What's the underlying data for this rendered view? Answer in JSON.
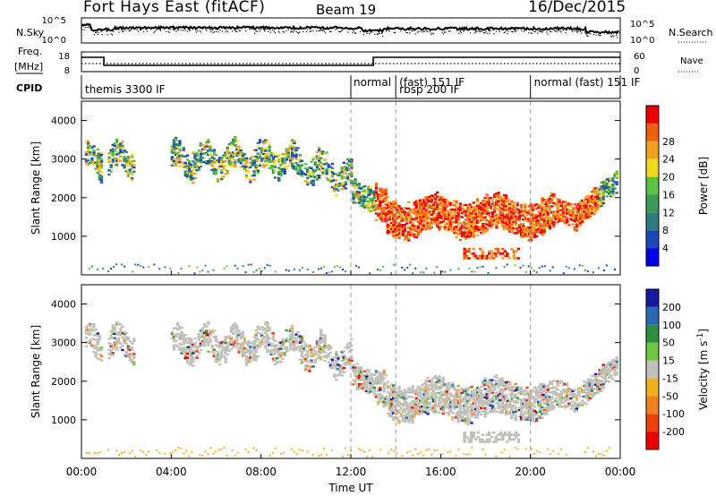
{
  "header": {
    "radar": "Fort Hays East (fitACF)",
    "beam": "Beam 19",
    "date": "16/Dec/2015"
  },
  "left_labels": {
    "nsky": "N.Sky",
    "freq_top": "Freq.",
    "freq_unit": "[MHz]",
    "cpid": "CPID"
  },
  "right_labels": {
    "nsearch": "N.Search",
    "nave": "Nave"
  },
  "noise_axis": {
    "left_top": "10^5",
    "left_bottom": "10^0",
    "right_top": "10^5",
    "right_bottom": "10^0"
  },
  "freq_axis": {
    "left_top": "18",
    "left_bottom": "8",
    "right_top": "60",
    "right_bottom": "0"
  },
  "cpid_labels": [
    "themis 3300 IF",
    "normal",
    "(fast) 151 IF",
    "rbsp 200 IF",
    "normal (fast) 151 IF"
  ],
  "xaxis": {
    "label": "Time UT",
    "ticks": [
      "00:00",
      "04:00",
      "08:00",
      "12:00",
      "16:00",
      "20:00",
      "00:00"
    ]
  },
  "chart_data": [
    {
      "type": "heatmap",
      "title": "",
      "xlabel": "Time UT",
      "ylabel": "Slant Range [km]",
      "x_range_hours": [
        0,
        24
      ],
      "ylim": [
        0,
        4500
      ],
      "yticks": [
        "1000",
        "2000",
        "3000",
        "4000"
      ],
      "colorbar": {
        "label": "Power [dB]",
        "ticks": [
          "4",
          "8",
          "12",
          "16",
          "20",
          "24",
          "28"
        ],
        "colors": [
          "#0000ee",
          "#1848b8",
          "#2e7a7a",
          "#3a9a58",
          "#5cc040",
          "#f0d820",
          "#f0a020",
          "#f06010",
          "#ee0000"
        ]
      },
      "dashed_times_hours": [
        12.0,
        14.0,
        20.0
      ]
    },
    {
      "type": "heatmap",
      "title": "",
      "xlabel": "Time UT",
      "ylabel": "Slant Range [km]",
      "x_range_hours": [
        0,
        24
      ],
      "ylim": [
        0,
        4500
      ],
      "yticks": [
        "1000",
        "2000",
        "3000",
        "4000"
      ],
      "colorbar": {
        "label": "Velocity [m s-1]",
        "label_main": "Velocity [m s",
        "label_sup": "-1",
        "label_end": "]",
        "ticks": [
          "200",
          "100",
          "50",
          "15",
          "-15",
          "-50",
          "-100",
          "-200"
        ],
        "colors": [
          "#1a1aa0",
          "#2a6ab0",
          "#2a9040",
          "#70c840",
          "#c0c0b8",
          "#f0b020",
          "#f08020",
          "#f04010",
          "#ee0000"
        ]
      },
      "dashed_times_hours": [
        12.0,
        14.0,
        20.0
      ]
    }
  ]
}
